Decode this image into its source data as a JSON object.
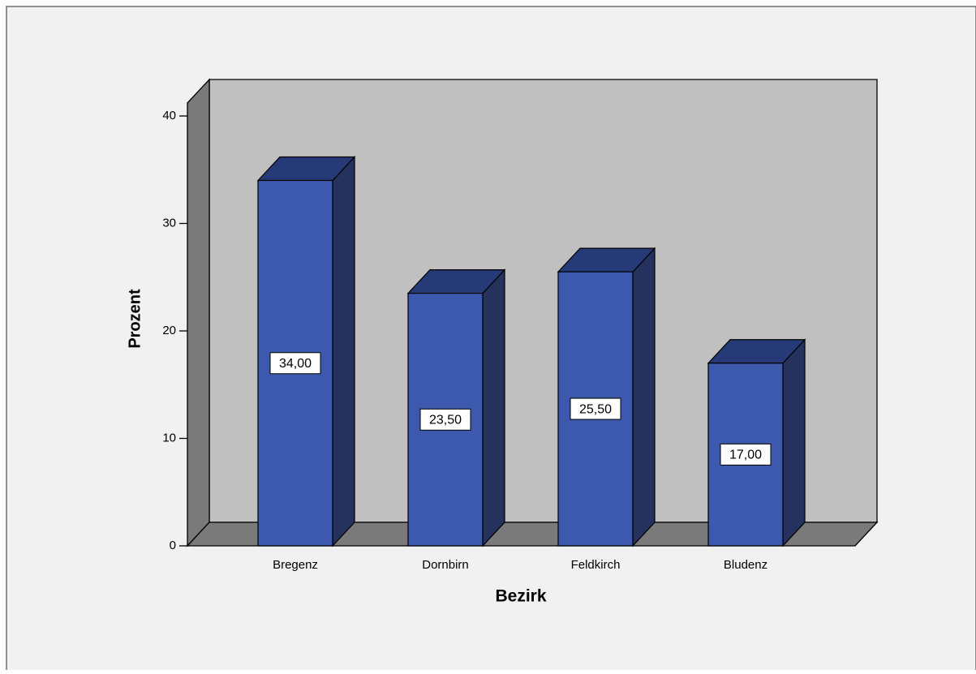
{
  "chart_data": {
    "type": "bar",
    "xlabel": "Bezirk",
    "ylabel": "Prozent",
    "categories": [
      "Bregenz",
      "Dornbirn",
      "Feldkirch",
      "Bludenz"
    ],
    "values": [
      34.0,
      23.5,
      25.5,
      17.0
    ],
    "data_labels": [
      "34,00",
      "23,50",
      "25,50",
      "17,00"
    ],
    "y_ticks": [
      0,
      10,
      20,
      30,
      40
    ],
    "ylim": [
      0,
      40
    ],
    "grid": false,
    "legend": "none",
    "style": "3d",
    "colors": {
      "bar_front": "#3c59ad",
      "bar_top": "#253a77",
      "bar_side": "#25325e",
      "back_wall": "#c0c0c0",
      "side_wall": "#7a7a7a",
      "floor": "#7a7a7a",
      "chart_background": "#f1f1f1",
      "border": "#6e6e6e"
    }
  }
}
